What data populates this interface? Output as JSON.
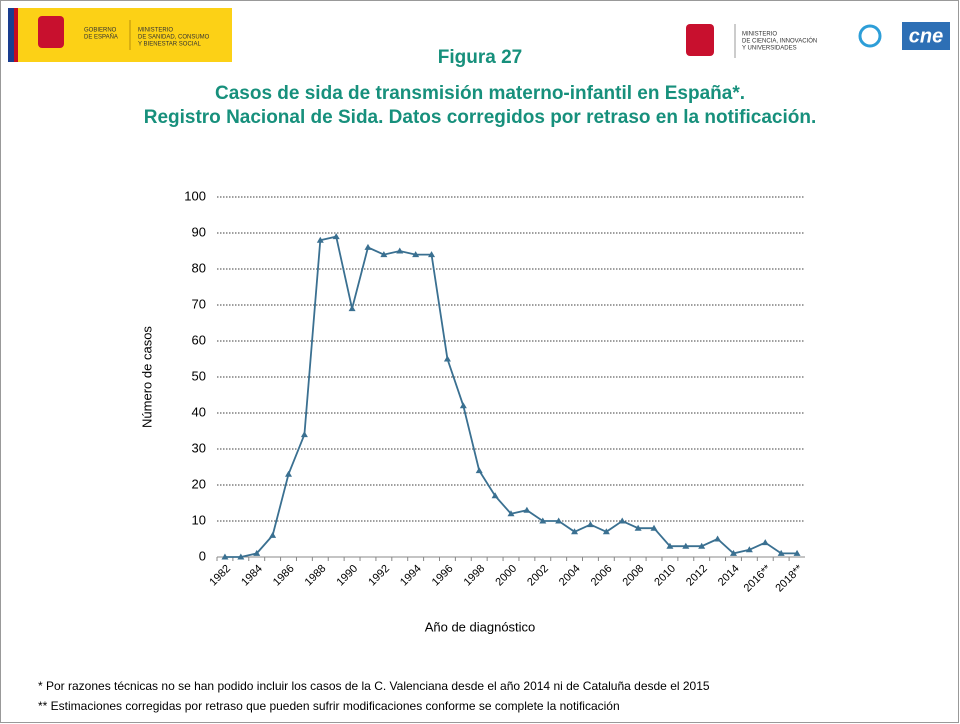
{
  "header": {
    "left_logo": [
      "GOBIERNO",
      "DE ESPAÑA"
    ],
    "left_ministry": [
      "MINISTERIO",
      "DE SANIDAD, CONSUMO",
      "Y BIENESTAR SOCIAL"
    ],
    "right_ministry": [
      "MINISTERIO",
      "DE CIENCIA, INNOVACIÓN",
      "Y UNIVERSIDADES"
    ],
    "right_logo": "cne"
  },
  "chart_data": {
    "type": "line",
    "title": "Figura 27",
    "subtitle": [
      "Casos de sida de transmisión materno-infantil en España*.",
      "Registro Nacional de Sida. Datos corregidos por retraso en la notificación."
    ],
    "x_label": "Año de diagnóstico",
    "y_label": "Número de casos",
    "categories": [
      "1982",
      null,
      "1984",
      null,
      "1986",
      null,
      "1988",
      null,
      "1990",
      null,
      "1992",
      null,
      "1994",
      null,
      "1996",
      null,
      "1998",
      null,
      "2000",
      null,
      "2002",
      null,
      "2004",
      null,
      "2006",
      null,
      "2008",
      null,
      "2010",
      null,
      "2012",
      null,
      "2014",
      null,
      "2016**",
      null,
      "2018**"
    ],
    "series": [
      {
        "name": "Casos",
        "color": "#3a7091",
        "values": [
          0,
          0,
          1,
          6,
          23,
          34,
          88,
          89,
          69,
          86,
          84,
          85,
          84,
          84,
          55,
          42,
          24,
          17,
          12,
          13,
          10,
          10,
          7,
          9,
          7,
          10,
          8,
          8,
          3,
          3,
          3,
          5,
          1,
          2,
          4,
          1,
          1
        ]
      }
    ],
    "ylim": [
      0,
      100
    ],
    "yticks": [
      0,
      10,
      20,
      30,
      40,
      50,
      60,
      70,
      80,
      90,
      100
    ],
    "grid": true
  },
  "footnotes": [
    "* Por razones técnicas no se han podido incluir los casos de la C. Valenciana desde el año 2014 ni de Cataluña desde el 2015",
    "** Estimaciones corregidas por retraso que pueden sufrir modificaciones conforme se complete la notificación"
  ]
}
